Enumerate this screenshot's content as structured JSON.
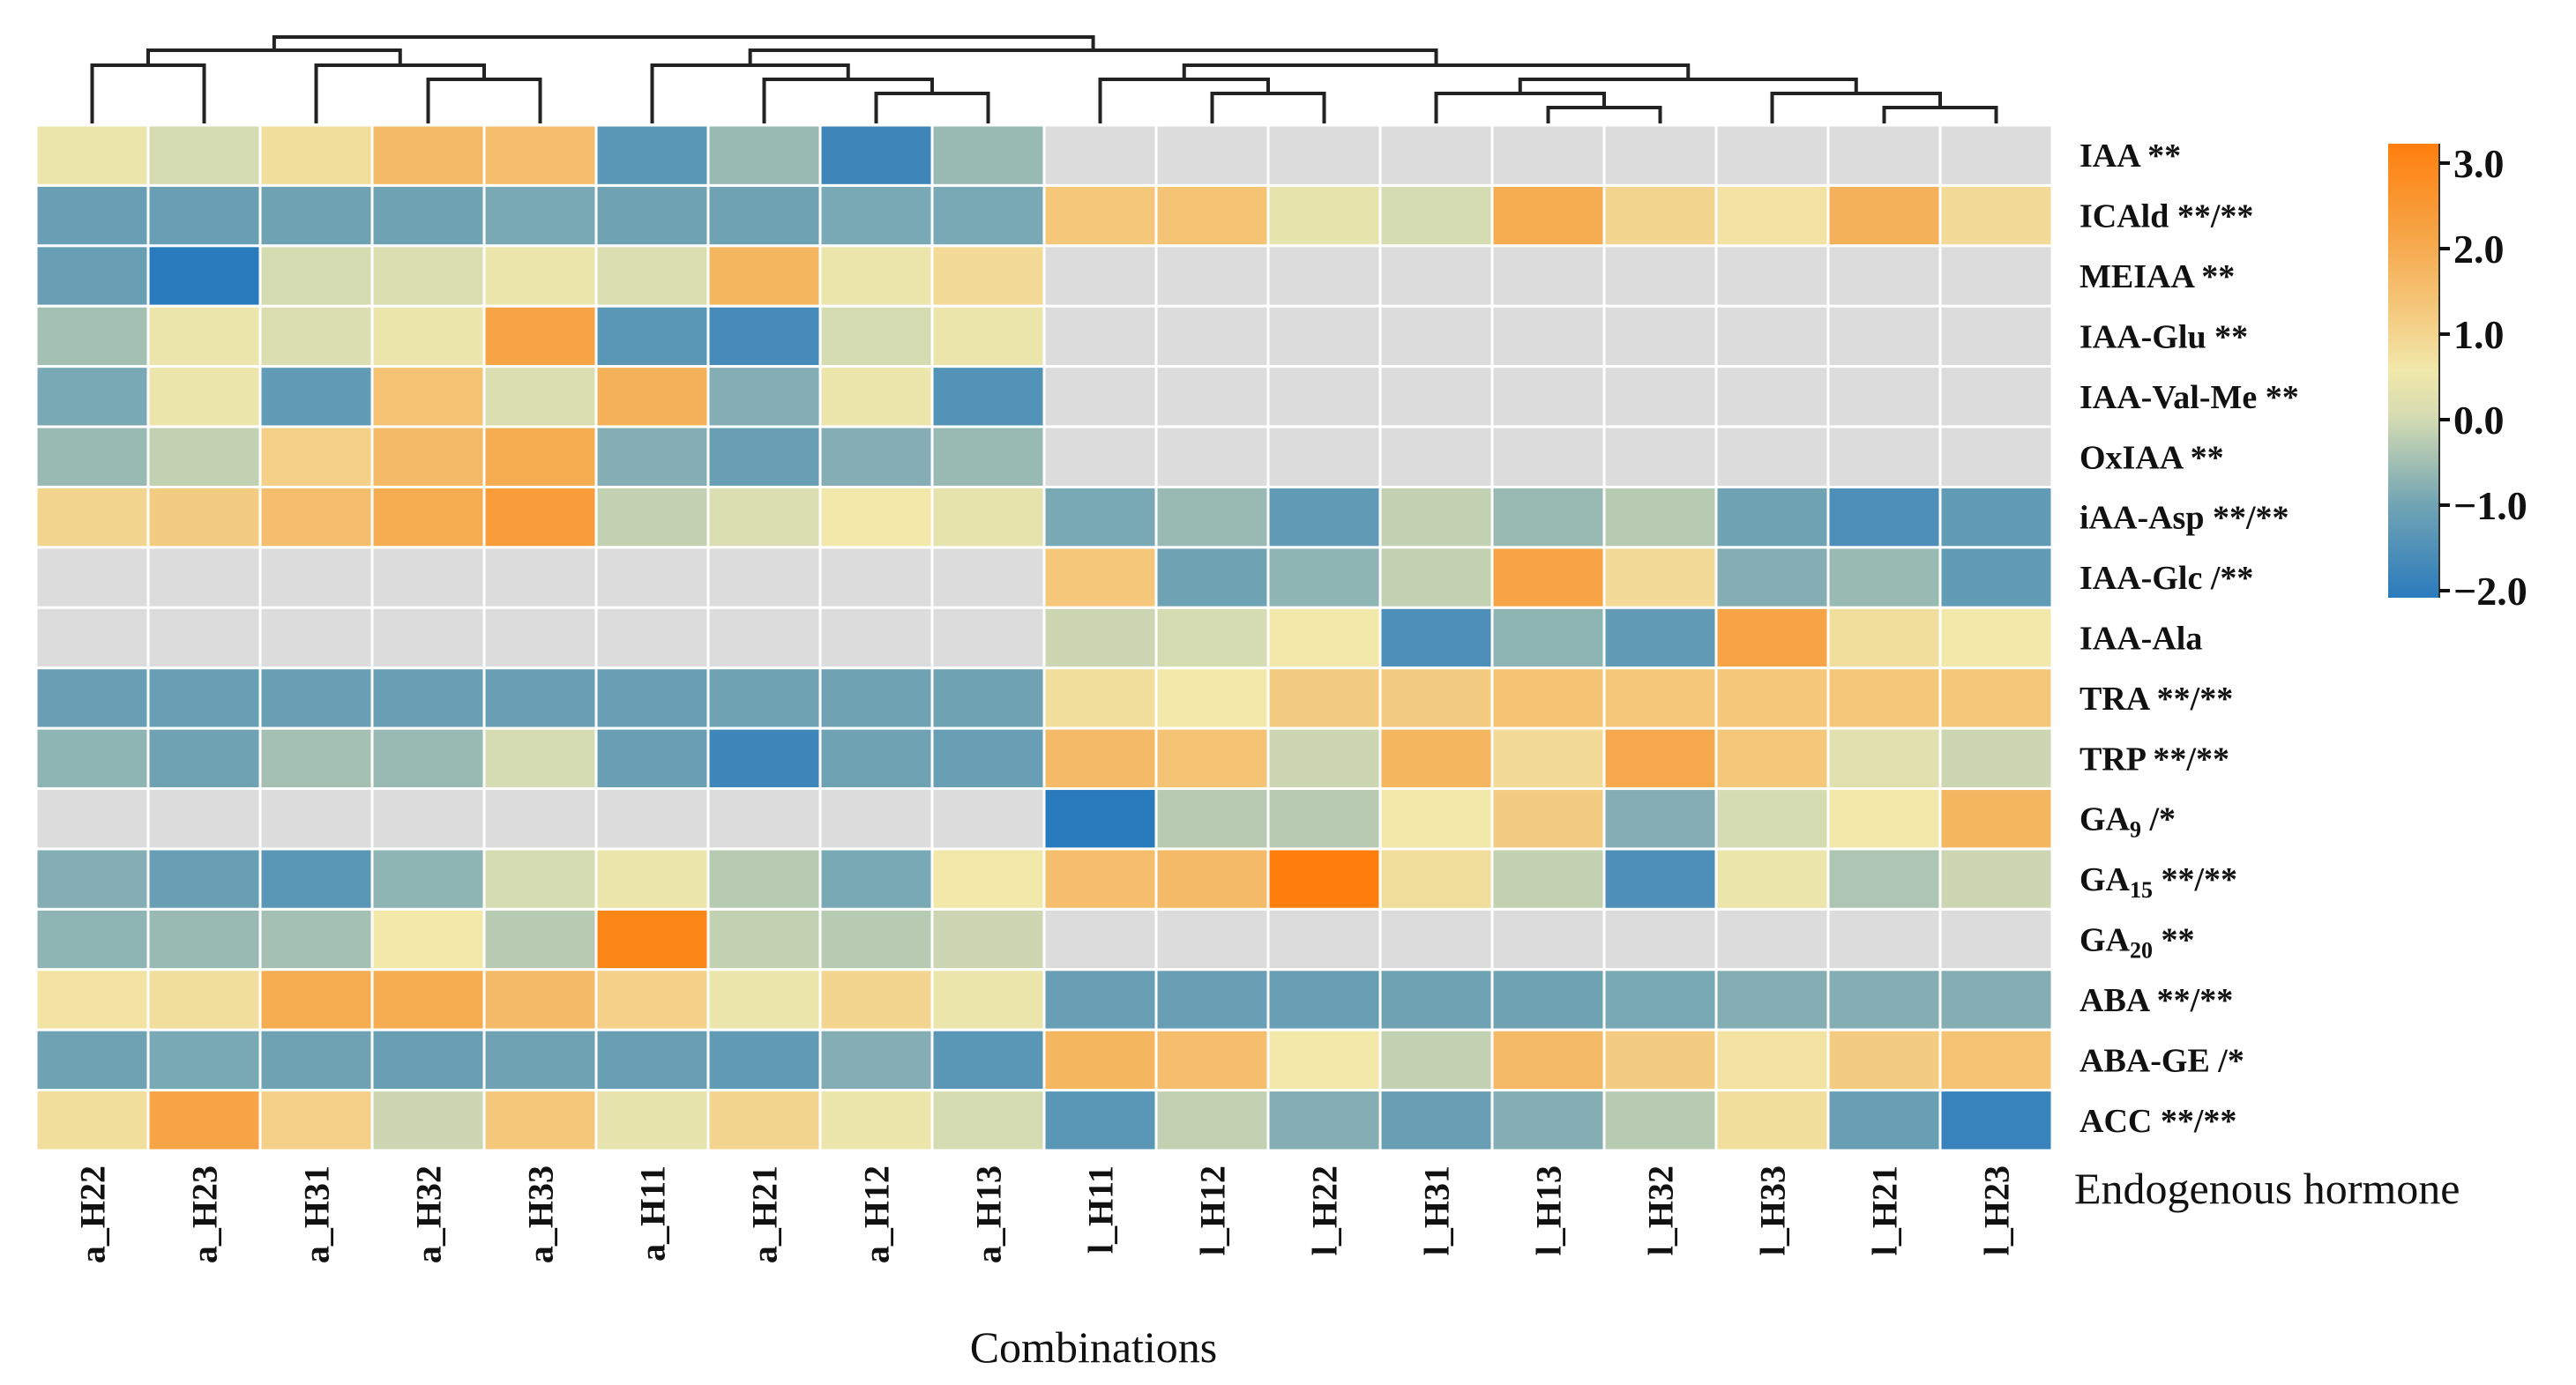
{
  "chart_data": {
    "type": "heatmap",
    "title": "",
    "xlabel": "Combinations",
    "ylabel": "Endogenous hormone",
    "columns": [
      "a_H22",
      "a_H23",
      "a_H31",
      "a_H32",
      "a_H33",
      "a_H11",
      "a_H21",
      "a_H12",
      "a_H13",
      "l_H11",
      "l_H12",
      "l_H22",
      "l_H31",
      "l_H13",
      "l_H32",
      "l_H33",
      "l_H21",
      "l_H23"
    ],
    "rows": [
      {
        "name": "IAA",
        "sub": "",
        "suffix": " **"
      },
      {
        "name": "ICAld",
        "sub": "",
        "suffix": " **/**"
      },
      {
        "name": "MEIAA",
        "sub": "",
        "suffix": " **"
      },
      {
        "name": "IAA-Glu",
        "sub": "",
        "suffix": " **"
      },
      {
        "name": "IAA-Val-Me",
        "sub": "",
        "suffix": " **"
      },
      {
        "name": "OxIAA",
        "sub": "",
        "suffix": " **"
      },
      {
        "name": "iAA-Asp",
        "sub": "",
        "suffix": " **/**"
      },
      {
        "name": "IAA-Glc",
        "sub": "",
        "suffix": " /**"
      },
      {
        "name": "IAA-Ala",
        "sub": "",
        "suffix": ""
      },
      {
        "name": "TRA",
        "sub": "",
        "suffix": " **/**"
      },
      {
        "name": "TRP",
        "sub": "",
        "suffix": " **/**"
      },
      {
        "name": "GA",
        "sub": "9",
        "suffix": " /*"
      },
      {
        "name": "GA",
        "sub": "15",
        "suffix": " **/**"
      },
      {
        "name": "GA",
        "sub": "20",
        "suffix": " **"
      },
      {
        "name": "ABA",
        "sub": "",
        "suffix": " **/**"
      },
      {
        "name": "ABA-GE",
        "sub": "",
        "suffix": " /*"
      },
      {
        "name": "ACC",
        "sub": "",
        "suffix": " **/**"
      }
    ],
    "values": [
      [
        0.4,
        0.0,
        0.7,
        1.5,
        1.4,
        -1.3,
        -0.6,
        -1.7,
        -0.6,
        null,
        null,
        null,
        null,
        null,
        null,
        null,
        null,
        null
      ],
      [
        -1.1,
        -1.1,
        -1.0,
        -1.0,
        -0.9,
        -1.0,
        -1.0,
        -0.9,
        -0.9,
        1.2,
        1.3,
        0.3,
        0.0,
        1.8,
        0.9,
        0.6,
        1.7,
        0.8
      ],
      [
        -1.1,
        -2.1,
        0.0,
        0.1,
        0.4,
        0.1,
        1.6,
        0.4,
        0.8,
        null,
        null,
        null,
        null,
        null,
        null,
        null,
        null,
        null
      ],
      [
        -0.5,
        0.4,
        0.1,
        0.4,
        2.0,
        -1.3,
        -1.6,
        0.0,
        0.4,
        null,
        null,
        null,
        null,
        null,
        null,
        null,
        null,
        null
      ],
      [
        -0.9,
        0.4,
        -1.2,
        1.3,
        0.1,
        1.7,
        -0.8,
        0.4,
        -1.4,
        null,
        null,
        null,
        null,
        null,
        null,
        null,
        null,
        null
      ],
      [
        -0.6,
        -0.2,
        1.0,
        1.5,
        1.8,
        -0.8,
        -1.1,
        -0.8,
        -0.6,
        null,
        null,
        null,
        null,
        null,
        null,
        null,
        null,
        null
      ],
      [
        0.9,
        1.1,
        1.4,
        1.8,
        2.2,
        -0.2,
        0.1,
        0.5,
        0.3,
        -0.9,
        -0.6,
        -1.2,
        -0.2,
        -0.6,
        -0.3,
        -1.0,
        -1.5,
        -1.2
      ],
      [
        null,
        null,
        null,
        null,
        null,
        null,
        null,
        null,
        null,
        1.2,
        -1.0,
        -0.7,
        -0.2,
        2.0,
        0.8,
        -0.8,
        -0.6,
        -1.2
      ],
      [
        null,
        null,
        null,
        null,
        null,
        null,
        null,
        null,
        null,
        -0.1,
        0.0,
        0.5,
        -1.5,
        -0.7,
        -1.2,
        2.0,
        0.7,
        0.5
      ],
      [
        -1.1,
        -1.1,
        -1.1,
        -1.1,
        -1.1,
        -1.1,
        -1.0,
        -1.0,
        -1.0,
        0.7,
        0.5,
        1.1,
        1.1,
        1.3,
        1.2,
        1.2,
        1.2,
        1.2
      ],
      [
        -0.7,
        -1.0,
        -0.5,
        -0.6,
        0.0,
        -1.1,
        -1.7,
        -1.0,
        -1.1,
        1.5,
        1.3,
        -0.1,
        1.6,
        0.8,
        1.9,
        1.2,
        0.2,
        -0.1
      ],
      [
        null,
        null,
        null,
        null,
        null,
        null,
        null,
        null,
        null,
        -2.0,
        -0.3,
        -0.3,
        0.5,
        1.1,
        -0.8,
        0.0,
        0.5,
        1.6
      ],
      [
        -0.8,
        -1.1,
        -1.3,
        -0.7,
        0.0,
        0.4,
        -0.3,
        -0.9,
        0.5,
        1.4,
        1.5,
        3.0,
        0.7,
        -0.2,
        -1.5,
        0.4,
        -0.4,
        -0.1
      ],
      [
        -0.7,
        -0.6,
        -0.5,
        0.5,
        -0.3,
        2.8,
        -0.2,
        -0.3,
        -0.1,
        null,
        null,
        null,
        null,
        null,
        null,
        null,
        null,
        null
      ],
      [
        0.6,
        0.7,
        1.8,
        1.8,
        1.5,
        1.0,
        0.4,
        0.9,
        0.4,
        -1.1,
        -1.1,
        -1.1,
        -1.0,
        -1.0,
        -0.9,
        -0.8,
        -0.8,
        -0.8
      ],
      [
        -1.0,
        -0.9,
        -1.0,
        -1.1,
        -1.0,
        -1.1,
        -1.2,
        -0.8,
        -1.3,
        1.6,
        1.4,
        0.5,
        -0.2,
        1.5,
        1.1,
        0.6,
        1.1,
        1.3
      ],
      [
        0.7,
        2.0,
        1.0,
        -0.1,
        1.2,
        0.3,
        0.9,
        0.4,
        0.0,
        -1.3,
        -0.2,
        -0.8,
        -1.1,
        -0.8,
        -0.3,
        0.7,
        -1.1,
        -1.8
      ]
    ],
    "missing_color": "#dcdcdc",
    "colorscale": [
      {
        "v": -2.0,
        "c": "#2a7bbd"
      },
      {
        "v": -1.0,
        "c": "#6fa3b4"
      },
      {
        "v": 0.0,
        "c": "#d6dcb2"
      },
      {
        "v": 0.5,
        "c": "#f1e8aa"
      },
      {
        "v": 1.0,
        "c": "#f4d088"
      },
      {
        "v": 2.0,
        "c": "#f6a445"
      },
      {
        "v": 3.0,
        "c": "#ff7f0e"
      }
    ],
    "colorbar": {
      "range": [
        -2.0,
        3.0
      ],
      "ticks": [
        3.0,
        2.0,
        1.0,
        0.0,
        -1.0,
        -2.0
      ],
      "tick_labels": [
        "3.0",
        "2.0",
        "1.0",
        "0.0",
        "−1.0",
        "−2.0"
      ],
      "placement": "top-right"
    },
    "dendrogram": {
      "merges": [
        {
          "a": 0,
          "b": 1,
          "h": 4
        },
        {
          "a": 3,
          "b": 4,
          "h": 3
        },
        {
          "a": 2,
          "b": "m1",
          "h": 4
        },
        {
          "a": "m0",
          "b": "m2",
          "h": 5
        },
        {
          "a": 7,
          "b": 8,
          "h": 2
        },
        {
          "a": 6,
          "b": "m4",
          "h": 3
        },
        {
          "a": 5,
          "b": "m5",
          "h": 4
        },
        {
          "a": 10,
          "b": 11,
          "h": 2
        },
        {
          "a": 9,
          "b": "m7",
          "h": 3
        },
        {
          "a": 13,
          "b": 14,
          "h": 1
        },
        {
          "a": 12,
          "b": "m9",
          "h": 2
        },
        {
          "a": 16,
          "b": 17,
          "h": 1
        },
        {
          "a": 15,
          "b": "m11",
          "h": 2
        },
        {
          "a": "m10",
          "b": "m12",
          "h": 3
        },
        {
          "a": "m8",
          "b": "m13",
          "h": 4
        },
        {
          "a": "m6",
          "b": "m14",
          "h": 5
        },
        {
          "a": "m3",
          "b": "m15",
          "h": 6
        }
      ]
    }
  }
}
